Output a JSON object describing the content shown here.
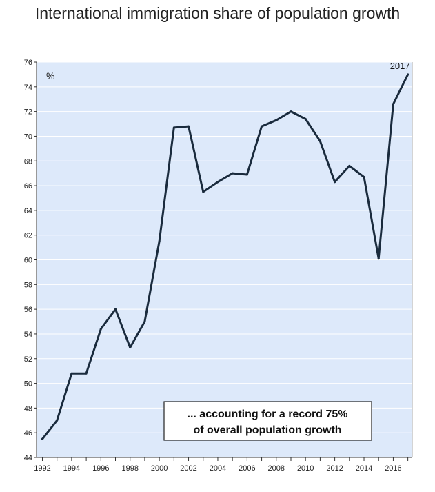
{
  "chart_data": {
    "type": "line",
    "title": "International immigration share of population growth",
    "unit_label": "%",
    "end_label": "2017",
    "annotation": [
      "... accounting for a record 75%",
      "of overall population growth"
    ],
    "ylim": [
      44,
      76
    ],
    "y_ticks": [
      44,
      46,
      48,
      50,
      52,
      54,
      56,
      58,
      60,
      62,
      64,
      66,
      68,
      70,
      72,
      74,
      76
    ],
    "xlim": [
      1992,
      2017
    ],
    "x_ticks": [
      1992,
      1994,
      1996,
      1998,
      2000,
      2002,
      2004,
      2006,
      2008,
      2010,
      2012,
      2014,
      2016
    ],
    "grid": true,
    "colors": {
      "plot_background": "#dde9fa",
      "line": "#1a2b3d",
      "grid": "#ffffff"
    },
    "series": [
      {
        "x": [
          1992,
          1993,
          1994,
          1995,
          1996,
          1997,
          1998,
          1999,
          2000,
          2001,
          2002,
          2003,
          2004,
          2005,
          2006,
          2007,
          2008,
          2009,
          2010,
          2011,
          2012,
          2013,
          2014,
          2015,
          2016,
          2017
        ],
        "values": [
          45.5,
          47.0,
          50.8,
          50.8,
          54.4,
          56.0,
          52.9,
          55.0,
          61.5,
          70.7,
          70.8,
          65.5,
          66.3,
          67.0,
          66.9,
          70.8,
          71.3,
          72.0,
          71.4,
          69.6,
          66.3,
          67.6,
          66.7,
          60.1,
          72.6,
          75.0
        ]
      }
    ]
  }
}
